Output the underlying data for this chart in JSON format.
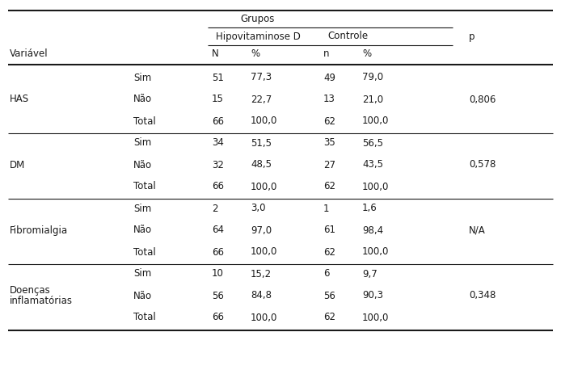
{
  "grupos_label": "Grupos",
  "hipovit_label": "Hipovitaminose D",
  "controle_label": "Controle",
  "p_label": "p",
  "variavel_label": "Variável",
  "col_N": "N",
  "col_pct": "%",
  "col_n": "n",
  "rows": [
    {
      "variavel": "HAS",
      "var_line2": "",
      "sub": "Sim",
      "N": "51",
      "pct1": "77,3",
      "n": "49",
      "pct2": "79,0",
      "p": "",
      "p_row": false
    },
    {
      "variavel": "",
      "var_line2": "",
      "sub": "Não",
      "N": "15",
      "pct1": "22,7",
      "n": "13",
      "pct2": "21,0",
      "p": "0,806",
      "p_row": true
    },
    {
      "variavel": "",
      "var_line2": "",
      "sub": "Total",
      "N": "66",
      "pct1": "100,0",
      "n": "62",
      "pct2": "100,0",
      "p": "",
      "p_row": false
    },
    {
      "variavel": "DM",
      "var_line2": "",
      "sub": "Sim",
      "N": "34",
      "pct1": "51,5",
      "n": "35",
      "pct2": "56,5",
      "p": "",
      "p_row": false
    },
    {
      "variavel": "",
      "var_line2": "",
      "sub": "Não",
      "N": "32",
      "pct1": "48,5",
      "n": "27",
      "pct2": "43,5",
      "p": "0,578",
      "p_row": true
    },
    {
      "variavel": "",
      "var_line2": "",
      "sub": "Total",
      "N": "66",
      "pct1": "100,0",
      "n": "62",
      "pct2": "100,0",
      "p": "",
      "p_row": false
    },
    {
      "variavel": "Fibromialgia",
      "var_line2": "",
      "sub": "Sim",
      "N": "2",
      "pct1": "3,0",
      "n": "1",
      "pct2": "1,6",
      "p": "",
      "p_row": false
    },
    {
      "variavel": "",
      "var_line2": "",
      "sub": "Não",
      "N": "64",
      "pct1": "97,0",
      "n": "61",
      "pct2": "98,4",
      "p": "N/A",
      "p_row": true
    },
    {
      "variavel": "",
      "var_line2": "",
      "sub": "Total",
      "N": "66",
      "pct1": "100,0",
      "n": "62",
      "pct2": "100,0",
      "p": "",
      "p_row": false
    },
    {
      "variavel": "Doenças",
      "var_line2": "inflamatórias",
      "sub": "Sim",
      "N": "10",
      "pct1": "15,2",
      "n": "6",
      "pct2": "9,7",
      "p": "",
      "p_row": false
    },
    {
      "variavel": "",
      "var_line2": "",
      "sub": "Não",
      "N": "56",
      "pct1": "84,8",
      "n": "56",
      "pct2": "90,3",
      "p": "0,348",
      "p_row": true
    },
    {
      "variavel": "",
      "var_line2": "",
      "sub": "Total",
      "N": "66",
      "pct1": "100,0",
      "n": "62",
      "pct2": "100,0",
      "p": "",
      "p_row": false
    }
  ],
  "section_dividers_after_rows": [
    2,
    5,
    8
  ],
  "bg_color": "#ffffff",
  "text_color": "#1a1a1a",
  "font_size": 8.5,
  "font_family": "DejaVu Sans"
}
